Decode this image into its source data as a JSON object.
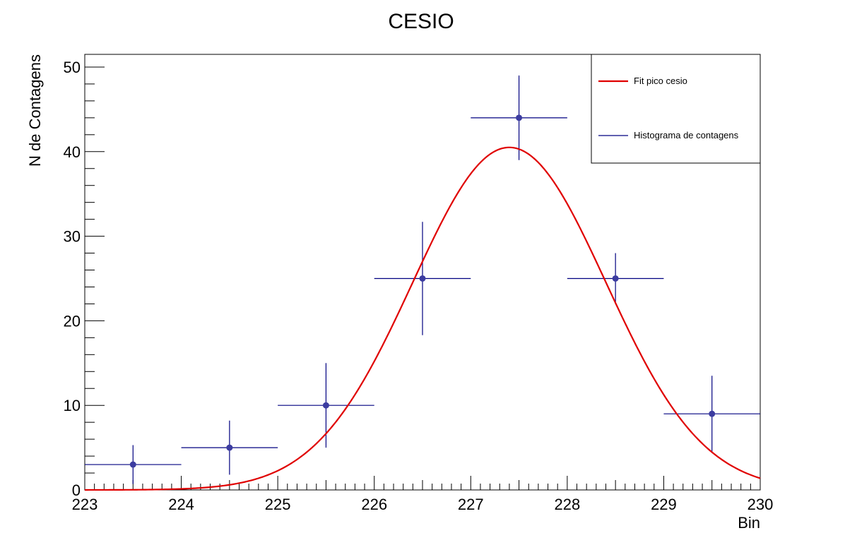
{
  "chart_data": {
    "type": "scatter",
    "title": "CESIO",
    "xlabel": "Bin",
    "ylabel": "N de Contagens",
    "xlim": [
      223,
      230
    ],
    "ylim": [
      0,
      51.5
    ],
    "xticks": [
      223,
      224,
      225,
      226,
      227,
      228,
      229,
      230
    ],
    "yticks": [
      0,
      10,
      20,
      30,
      40,
      50
    ],
    "grid": false,
    "legend_position": "top-right",
    "series": [
      {
        "name": "Histograma de contagens",
        "kind": "histogram-errorbars",
        "color": "#000080",
        "marker_color": "#3c3ca0",
        "bins": [
          {
            "x": 223.5,
            "y": 3,
            "xerr": 0.5,
            "yerr": 2.3
          },
          {
            "x": 224.5,
            "y": 5,
            "xerr": 0.5,
            "yerr": 3.2
          },
          {
            "x": 225.5,
            "y": 10,
            "xerr": 0.5,
            "yerr": 5.0
          },
          {
            "x": 226.5,
            "y": 25,
            "xerr": 0.5,
            "yerr": 6.7
          },
          {
            "x": 227.5,
            "y": 44,
            "xerr": 0.5,
            "yerr": 5.0
          },
          {
            "x": 228.5,
            "y": 25,
            "xerr": 0.5,
            "yerr": 3.0
          },
          {
            "x": 229.5,
            "y": 9,
            "xerr": 0.5,
            "yerr": 4.5
          }
        ]
      },
      {
        "name": "Fit pico cesio",
        "kind": "gaussian-fit",
        "color": "#e00000",
        "amplitude": 40.5,
        "mean": 227.4,
        "sigma": 1.0
      }
    ]
  }
}
